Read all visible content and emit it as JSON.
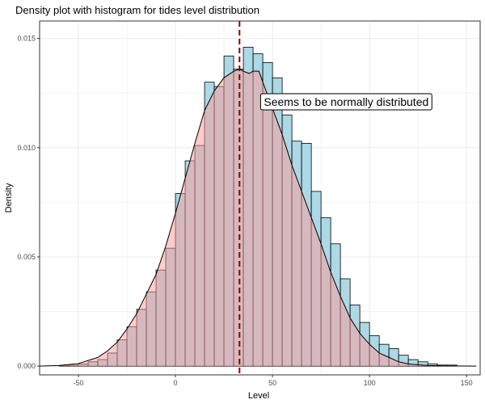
{
  "chart_data": {
    "type": "bar",
    "title": "Density plot with histogram for tides level distribution",
    "xlabel": "Level",
    "ylabel": "Density",
    "xlim": [
      -70,
      157
    ],
    "ylim": [
      -0.0004,
      0.0158
    ],
    "x_ticks": [
      -50,
      0,
      50,
      100,
      150
    ],
    "x_tick_labels": [
      "-50",
      "0",
      "50",
      "100",
      "150"
    ],
    "y_ticks": [
      0,
      0.005,
      0.01,
      0.015
    ],
    "y_tick_labels": [
      "0.000",
      "0.005",
      "0.010",
      "0.015"
    ],
    "grid": true,
    "bin_width": 5,
    "bins": {
      "x_start": [
        -70,
        -65,
        -60,
        -55,
        -50,
        -45,
        -40,
        -35,
        -30,
        -25,
        -20,
        -15,
        -10,
        -5,
        0,
        5,
        10,
        15,
        20,
        25,
        30,
        35,
        40,
        45,
        50,
        55,
        60,
        65,
        70,
        75,
        80,
        85,
        90,
        95,
        100,
        105,
        110,
        115,
        120,
        125,
        130,
        135,
        140,
        145,
        150
      ],
      "density": [
        0,
        0,
        2e-05,
        5e-05,
        0.0001,
        0.0002,
        0.0003,
        0.0006,
        0.0012,
        0.0018,
        0.0026,
        0.0034,
        0.0044,
        0.0054,
        0.0079,
        0.0094,
        0.0101,
        0.013,
        0.0128,
        0.0142,
        0.0136,
        0.0146,
        0.0143,
        0.0139,
        0.0132,
        0.0115,
        0.0103,
        0.0102,
        0.008,
        0.0068,
        0.0056,
        0.004,
        0.0028,
        0.002,
        0.0014,
        0.001,
        0.0008,
        0.0005,
        0.0003,
        0.0002,
        0.0001,
        5e-05,
        5e-05,
        0,
        0
      ]
    },
    "density_curve": {
      "x": [
        -70,
        -60,
        -50,
        -40,
        -35,
        -30,
        -25,
        -20,
        -15,
        -10,
        -5,
        0,
        5,
        10,
        15,
        20,
        25,
        30,
        33,
        35,
        38,
        40,
        43,
        45,
        50,
        55,
        60,
        65,
        70,
        75,
        80,
        85,
        90,
        95,
        100,
        105,
        110,
        115,
        120,
        130,
        140,
        155
      ],
      "y": [
        0,
        3e-05,
        0.00012,
        0.0004,
        0.0007,
        0.0011,
        0.0017,
        0.0024,
        0.0033,
        0.0042,
        0.0055,
        0.007,
        0.0086,
        0.0102,
        0.0117,
        0.0126,
        0.0132,
        0.0135,
        0.0136,
        0.0135,
        0.0134,
        0.0135,
        0.0135,
        0.013,
        0.0118,
        0.0106,
        0.0092,
        0.008,
        0.0068,
        0.0056,
        0.0043,
        0.0032,
        0.0022,
        0.0015,
        0.001,
        0.0006,
        0.0004,
        0.0002,
        0.0001,
        3e-05,
        1e-05,
        0
      ]
    },
    "mean_line_x": 33,
    "annotation": {
      "text": "Seems to be normally distributed",
      "x": 88,
      "y": 0.0121
    },
    "colors": {
      "histogram_fill": "#add8e6",
      "density_fill": "#ff9a96",
      "mean_line": "#8b0000",
      "grid": "#ebebeb",
      "panel_border": "#333333"
    }
  }
}
